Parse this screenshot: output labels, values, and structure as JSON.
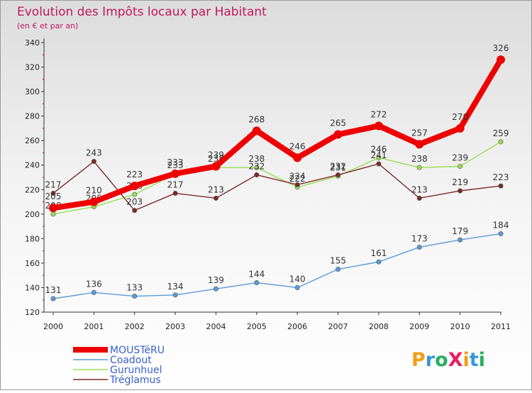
{
  "chart_data": {
    "type": "line",
    "title": "Evolution des Impôts locaux par Habitant",
    "subtitle": "(en € et par an)",
    "xlabel": "",
    "ylabel": "",
    "ylim": [
      120,
      340
    ],
    "yticks": [
      120,
      140,
      160,
      180,
      200,
      220,
      240,
      260,
      280,
      300,
      320,
      340
    ],
    "grid": false,
    "legend_position": "bottom-left",
    "x": [
      "2000",
      "2001",
      "2002",
      "2003",
      "2004",
      "2005",
      "2006",
      "2007",
      "2008",
      "2009",
      "2010",
      "2011"
    ],
    "series": [
      {
        "name": "Coadout",
        "color": "#5b9bd5",
        "values": [
          131,
          136,
          133,
          134,
          139,
          144,
          140,
          155,
          161,
          173,
          179,
          184
        ]
      },
      {
        "name": "Gurunhuel",
        "color": "#99dd55",
        "values": [
          200,
          206,
          216,
          233,
          238,
          238,
          222,
          231,
          246,
          238,
          239,
          259
        ]
      },
      {
        "name": "Tréglamus",
        "color": "#7a2a2a",
        "values": [
          217,
          243,
          203,
          217,
          213,
          232,
          224,
          232,
          241,
          213,
          219,
          223
        ]
      },
      {
        "name": "MOUSTéRU",
        "color": "#ee0000",
        "values": [
          205,
          210,
          223,
          233,
          239,
          268,
          246,
          265,
          272,
          257,
          270,
          326
        ]
      }
    ],
    "legend": [
      "MOUSTéRU",
      "Coadout",
      "Gurunhuel",
      "Tréglamus"
    ]
  },
  "logo": {
    "text": "ProXiti"
  }
}
